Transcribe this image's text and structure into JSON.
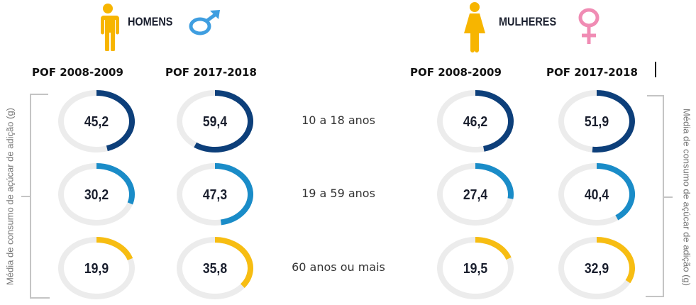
{
  "groups": {
    "men": {
      "title": "HOMENS",
      "person_icon": "man-icon",
      "symbol_icon": "male-symbol-icon",
      "symbol_color": "#3f9ee0"
    },
    "women": {
      "title": "MULHERES",
      "person_icon": "woman-icon",
      "symbol_icon": "female-symbol-icon",
      "symbol_color": "#f08cb4"
    }
  },
  "person_color": "#f7b500",
  "track_color": "#ececec",
  "axis_label": "Média de consumo de açúcar de adição (g)",
  "chart_data": {
    "type": "radial-progress",
    "title": "",
    "ylabel": "Média de consumo de açúcar de adição (g)",
    "value_scale_max": 100,
    "columns": [
      {
        "group": "HOMENS",
        "survey": "POF 2008-2009"
      },
      {
        "group": "HOMENS",
        "survey": "POF 2017-2018"
      },
      {
        "group": "MULHERES",
        "survey": "POF 2008-2009"
      },
      {
        "group": "MULHERES",
        "survey": "POF 2017-2018"
      }
    ],
    "categories": [
      "10 a 18 anos",
      "19 a 59 anos",
      "60 anos ou mais"
    ],
    "category_colors": [
      "#0d3f7a",
      "#1a8cc8",
      "#f7bd12"
    ],
    "series": [
      {
        "name": "HOMENS POF 2008-2009",
        "values": [
          45.2,
          30.2,
          19.9
        ],
        "labels": [
          "45,2",
          "30,2",
          "19,9"
        ]
      },
      {
        "name": "HOMENS POF 2017-2018",
        "values": [
          59.4,
          47.3,
          35.8
        ],
        "labels": [
          "59,4",
          "47,3",
          "35,8"
        ]
      },
      {
        "name": "MULHERES POF 2008-2009",
        "values": [
          46.2,
          27.4,
          19.5
        ],
        "labels": [
          "46,2",
          "27,4",
          "19,5"
        ]
      },
      {
        "name": "MULHERES POF 2017-2018",
        "values": [
          51.9,
          40.4,
          32.9
        ],
        "labels": [
          "51,9",
          "40,4",
          "32,9"
        ]
      }
    ]
  }
}
